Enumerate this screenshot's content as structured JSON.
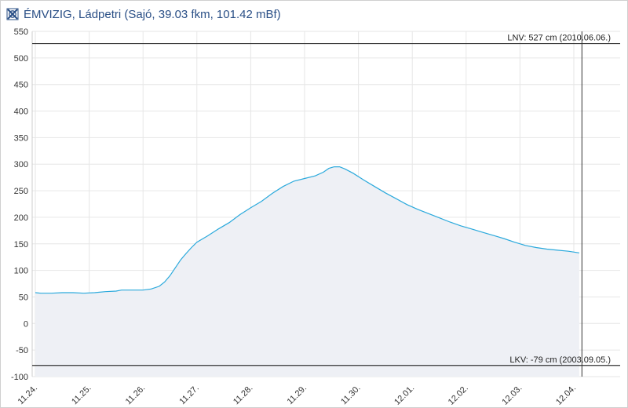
{
  "header": {
    "title": "ÉMVIZIG, Ládpetri (Sajó, 39.03 fkm, 101.42 mBf)",
    "logo_icon": "emvizig-logo-icon"
  },
  "colors": {
    "series": "#2aa9dc",
    "fill": "#eef0f5",
    "grid": "#e6e6e6",
    "ref_line": "#333333",
    "title": "#2a4f86"
  },
  "chart_data": {
    "type": "area",
    "title": "",
    "xlabel": "",
    "ylabel": "",
    "ylim": [
      -100,
      550
    ],
    "yticks": [
      -100,
      -50,
      0,
      50,
      100,
      150,
      200,
      250,
      300,
      350,
      400,
      450,
      500,
      550
    ],
    "xticks": [
      "11.24.",
      "11.25.",
      "11.26.",
      "11.27.",
      "11.28.",
      "11.29.",
      "11.30.",
      "12.01.",
      "12.02.",
      "12.03.",
      "12.04."
    ],
    "x_day_start": "11.24.",
    "grid": true,
    "series": [
      {
        "values_by_day": [
          [
            0.0,
            58
          ],
          [
            0.1,
            57
          ],
          [
            0.3,
            57
          ],
          [
            0.5,
            58
          ],
          [
            0.7,
            58
          ],
          [
            0.9,
            57
          ],
          [
            1.1,
            58
          ],
          [
            1.3,
            60
          ],
          [
            1.5,
            61
          ],
          [
            1.6,
            63
          ],
          [
            1.8,
            63
          ],
          [
            2.0,
            63
          ],
          [
            2.15,
            65
          ],
          [
            2.3,
            70
          ],
          [
            2.4,
            78
          ],
          [
            2.5,
            90
          ],
          [
            2.6,
            105
          ],
          [
            2.7,
            120
          ],
          [
            2.8,
            132
          ],
          [
            2.9,
            143
          ],
          [
            3.0,
            153
          ],
          [
            3.2,
            165
          ],
          [
            3.4,
            178
          ],
          [
            3.6,
            190
          ],
          [
            3.8,
            205
          ],
          [
            4.0,
            218
          ],
          [
            4.2,
            230
          ],
          [
            4.4,
            245
          ],
          [
            4.6,
            258
          ],
          [
            4.8,
            268
          ],
          [
            5.0,
            273
          ],
          [
            5.2,
            278
          ],
          [
            5.35,
            285
          ],
          [
            5.45,
            292
          ],
          [
            5.55,
            295
          ],
          [
            5.65,
            295
          ],
          [
            5.75,
            291
          ],
          [
            5.9,
            283
          ],
          [
            6.1,
            270
          ],
          [
            6.3,
            258
          ],
          [
            6.5,
            246
          ],
          [
            6.7,
            235
          ],
          [
            6.9,
            224
          ],
          [
            7.1,
            215
          ],
          [
            7.3,
            207
          ],
          [
            7.5,
            199
          ],
          [
            7.7,
            191
          ],
          [
            7.9,
            184
          ],
          [
            8.1,
            178
          ],
          [
            8.3,
            172
          ],
          [
            8.5,
            166
          ],
          [
            8.7,
            160
          ],
          [
            8.9,
            153
          ],
          [
            9.1,
            147
          ],
          [
            9.3,
            143
          ],
          [
            9.5,
            140
          ],
          [
            9.7,
            138
          ],
          [
            9.9,
            136
          ],
          [
            10.1,
            133
          ]
        ]
      }
    ],
    "reference_lines": [
      {
        "value": 527,
        "label": "LNV: 527 cm (2010.06.06.)"
      },
      {
        "value": -79,
        "label": "LKV: -79 cm (2003.09.05.)"
      }
    ],
    "current_marker_day": 10.15
  }
}
